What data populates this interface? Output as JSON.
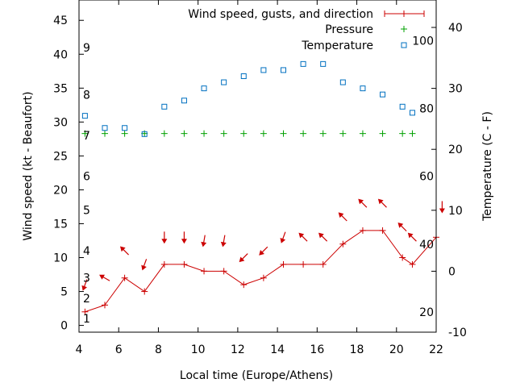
{
  "chart_data": {
    "type": "line",
    "xlabel": "Local time (Europe/Athens)",
    "ylabel_left": "Wind speed (kt - Beaufort)",
    "ylabel_right": "Temperature (C - F)",
    "x_ticks": [
      4,
      6,
      8,
      10,
      12,
      14,
      16,
      18,
      20,
      22
    ],
    "xlim": [
      4,
      22
    ],
    "y_left_ticks": [
      0,
      5,
      10,
      15,
      20,
      25,
      30,
      35,
      40,
      45
    ],
    "y_left_lim": [
      -1,
      48
    ],
    "y_right_ticks": [
      -10,
      0,
      10,
      20,
      30,
      40
    ],
    "y_right_lim": [
      -10,
      44.5
    ],
    "beaufort_labels": [
      {
        "label": "1",
        "y": 1
      },
      {
        "label": "2",
        "y": 4
      },
      {
        "label": "3",
        "y": 7
      },
      {
        "label": "4",
        "y": 11
      },
      {
        "label": "5",
        "y": 17
      },
      {
        "label": "6",
        "y": 22
      },
      {
        "label": "7",
        "y": 28
      },
      {
        "label": "8",
        "y": 34
      },
      {
        "label": "9",
        "y": 41
      }
    ],
    "fahrenheit_labels": [
      {
        "label": "20",
        "y": -6.7
      },
      {
        "label": "40",
        "y": 4.4
      },
      {
        "label": "60",
        "y": 15.6
      },
      {
        "label": "80",
        "y": 26.7
      },
      {
        "label": "100",
        "y": 37.8
      }
    ],
    "legend": {
      "placement": "top-right",
      "entries": [
        "Wind speed, gusts, and direction",
        "Pressure",
        "Temperature"
      ]
    },
    "series": [
      {
        "name": "Wind speed, gusts, and direction",
        "color": "#cc0000",
        "marker": "plus-line",
        "x": [
          4.3,
          5.3,
          6.3,
          7.3,
          8.3,
          9.3,
          10.3,
          11.3,
          12.3,
          13.3,
          14.3,
          15.3,
          16.3,
          17.3,
          18.3,
          19.3,
          20.3,
          20.8,
          22.0
        ],
        "y": [
          2,
          3,
          7,
          5,
          9,
          9,
          8,
          8,
          6,
          7,
          9,
          9,
          9,
          12,
          14,
          14,
          10,
          9,
          13
        ]
      },
      {
        "name": "Pressure",
        "color": "#00a000",
        "marker": "plus",
        "x": [
          4.3,
          5.3,
          6.3,
          7.3,
          8.3,
          9.3,
          10.3,
          11.3,
          12.3,
          13.3,
          14.3,
          15.3,
          16.3,
          17.3,
          18.3,
          19.3,
          20.3,
          20.8
        ],
        "y": [
          28.3,
          28.3,
          28.3,
          28.3,
          28.3,
          28.3,
          28.3,
          28.3,
          28.3,
          28.3,
          28.3,
          28.3,
          28.3,
          28.3,
          28.3,
          28.3,
          28.3,
          28.3
        ]
      },
      {
        "name": "Temperature",
        "color": "#0070c0",
        "marker": "square",
        "axis": "right",
        "x": [
          4.3,
          5.3,
          6.3,
          7.3,
          8.3,
          9.3,
          10.3,
          11.3,
          12.3,
          13.3,
          14.3,
          15.3,
          16.3,
          17.3,
          18.3,
          19.3,
          20.3,
          20.8
        ],
        "y": [
          25.5,
          23.5,
          23.5,
          22.5,
          27,
          28,
          30,
          31,
          32,
          33,
          33,
          34,
          34,
          31,
          30,
          29,
          27,
          26
        ]
      }
    ],
    "wind_direction_arrows": {
      "color": "#cc0000",
      "x": [
        4.3,
        5.3,
        6.3,
        7.3,
        8.3,
        9.3,
        10.3,
        11.3,
        12.3,
        13.3,
        14.3,
        15.3,
        16.3,
        17.3,
        18.3,
        19.3,
        20.3,
        20.8,
        22.3
      ],
      "y": [
        6,
        7,
        11,
        9,
        13,
        13,
        12.5,
        12.5,
        10,
        11,
        13,
        13,
        13,
        16,
        18,
        18,
        14.5,
        13,
        17.5
      ],
      "angle_deg": [
        200,
        300,
        315,
        200,
        180,
        180,
        190,
        190,
        225,
        225,
        200,
        315,
        315,
        315,
        315,
        315,
        315,
        315,
        180
      ]
    }
  }
}
